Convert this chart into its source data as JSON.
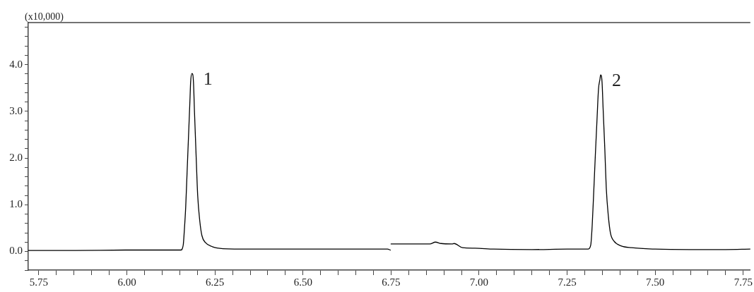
{
  "chart_data": {
    "type": "line",
    "ylabel": "(x10,000)",
    "color": "#000000",
    "marker": "none",
    "x": [
      5.72,
      5.85,
      6.0,
      6.1,
      6.15,
      6.153,
      6.16,
      6.163,
      6.167,
      6.171,
      6.175,
      6.179,
      6.181,
      6.185,
      6.189,
      6.192,
      6.197,
      6.201,
      6.207,
      6.213,
      6.223,
      6.243,
      6.273,
      6.35,
      6.5,
      6.65,
      6.74,
      6.748,
      6.749,
      6.75,
      6.86,
      6.876,
      6.892,
      6.923,
      6.929,
      6.953,
      6.988,
      7.042,
      7.15,
      7.25,
      7.31,
      7.317,
      7.321,
      7.325,
      7.33,
      7.335,
      7.339,
      7.343,
      7.345,
      7.349,
      7.352,
      7.357,
      7.361,
      7.367,
      7.373,
      7.383,
      7.403,
      7.433,
      7.5,
      7.6,
      7.7,
      7.77
    ],
    "values": [
      0.02,
      0.02,
      0.03,
      0.03,
      0.03,
      0.03,
      0.14,
      0.44,
      0.95,
      1.71,
      2.47,
      3.23,
      3.63,
      3.81,
      3.63,
      2.97,
      1.96,
      1.2,
      0.65,
      0.34,
      0.19,
      0.1,
      0.06,
      0.05,
      0.05,
      0.05,
      0.05,
      0.03,
      null,
      0.16,
      0.16,
      0.2,
      0.17,
      0.16,
      0.17,
      0.08,
      0.07,
      0.05,
      0.04,
      0.05,
      0.05,
      0.14,
      0.55,
      1.2,
      2.06,
      2.87,
      3.48,
      3.68,
      3.78,
      3.63,
      3.07,
      2.17,
      1.36,
      0.75,
      0.39,
      0.22,
      0.12,
      0.08,
      0.05,
      0.04,
      0.04,
      0.05
    ],
    "xlim": [
      5.72,
      7.77
    ],
    "ylim": [
      -0.4,
      4.9
    ],
    "xticks": [
      5.75,
      {
        "value": 5.8,
        "label": null
      },
      {
        "value": 5.85,
        "label": null
      },
      {
        "value": 5.9,
        "label": null
      },
      {
        "value": 5.95,
        "label": null
      },
      {
        "value": 6,
        "label": "6.00"
      },
      {
        "value": 6.05,
        "label": null
      },
      {
        "value": 6.1,
        "label": null
      },
      {
        "value": 6.15,
        "label": null
      },
      {
        "value": 6.2,
        "label": null
      },
      6.25,
      {
        "value": 6.3,
        "label": null
      },
      {
        "value": 6.35,
        "label": null
      },
      {
        "value": 6.4,
        "label": null
      },
      {
        "value": 6.45,
        "label": null
      },
      {
        "value": 6.5,
        "label": "6.50"
      },
      {
        "value": 6.55,
        "label": null
      },
      {
        "value": 6.6,
        "label": null
      },
      {
        "value": 6.65,
        "label": null
      },
      {
        "value": 6.7,
        "label": null
      },
      6.75,
      {
        "value": 6.8,
        "label": null
      },
      {
        "value": 6.85,
        "label": null
      },
      {
        "value": 6.9,
        "label": null
      },
      {
        "value": 6.95,
        "label": null
      },
      {
        "value": 7,
        "label": "7.00"
      },
      {
        "value": 7.05,
        "label": null
      },
      {
        "value": 7.1,
        "label": null
      },
      {
        "value": 7.15,
        "label": null
      },
      {
        "value": 7.2,
        "label": null
      },
      7.25,
      {
        "value": 7.3,
        "label": null
      },
      {
        "value": 7.35,
        "label": null
      },
      {
        "value": 7.4,
        "label": null
      },
      {
        "value": 7.45,
        "label": null
      },
      {
        "value": 7.5,
        "label": "7.50"
      },
      {
        "value": 7.55,
        "label": null
      },
      {
        "value": 7.6,
        "label": null
      },
      {
        "value": 7.65,
        "label": null
      },
      {
        "value": 7.7,
        "label": null
      },
      7.75
    ],
    "yticks": [
      {
        "value": -0.4,
        "label": null
      },
      {
        "value": -0.2,
        "label": null
      },
      {
        "value": 0,
        "label": "0.0"
      },
      {
        "value": 0.2,
        "label": null
      },
      {
        "value": 0.4,
        "label": null
      },
      {
        "value": 0.6,
        "label": null
      },
      {
        "value": 0.8,
        "label": null
      },
      {
        "value": 1,
        "label": "1.0"
      },
      {
        "value": 1.2,
        "label": null
      },
      {
        "value": 1.4,
        "label": null
      },
      {
        "value": 1.6,
        "label": null
      },
      {
        "value": 1.8,
        "label": null
      },
      {
        "value": 2,
        "label": "2.0"
      },
      {
        "value": 2.2,
        "label": null
      },
      {
        "value": 2.4,
        "label": null
      },
      {
        "value": 2.6,
        "label": null
      },
      {
        "value": 2.8,
        "label": null
      },
      {
        "value": 3,
        "label": "3.0"
      },
      {
        "value": 3.2,
        "label": null
      },
      {
        "value": 3.4,
        "label": null
      },
      {
        "value": 3.6,
        "label": null
      },
      {
        "value": 3.8,
        "label": null
      },
      {
        "value": 4,
        "label": "4.0"
      },
      {
        "value": 4.2,
        "label": null
      },
      {
        "value": 4.4,
        "label": null
      },
      {
        "value": 4.6,
        "label": null
      },
      {
        "value": 4.8,
        "label": null
      }
    ],
    "annotations": [
      {
        "text": "1",
        "x": 6.185,
        "y": 3.81
      },
      {
        "text": "2",
        "x": 7.345,
        "y": 3.78
      }
    ]
  }
}
